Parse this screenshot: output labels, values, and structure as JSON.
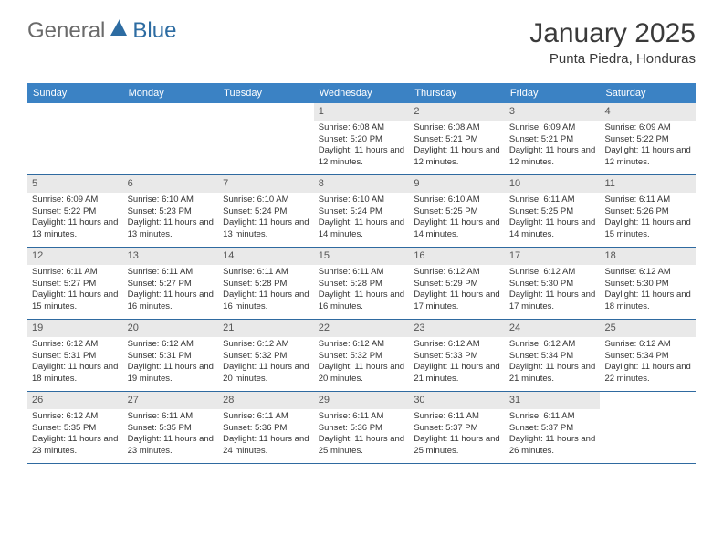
{
  "logo": {
    "text_general": "General",
    "text_blue": "Blue"
  },
  "title": "January 2025",
  "subtitle": "Punta Piedra, Honduras",
  "colors": {
    "header_bg": "#3b82c4",
    "header_text": "#ffffff",
    "daynum_bg": "#e9e9e9",
    "daynum_text": "#555555",
    "body_text": "#333333",
    "rule": "#2f6aa0",
    "logo_blue": "#2d6ca2",
    "logo_gray": "#6a6a6a",
    "page_bg": "#ffffff"
  },
  "typography": {
    "title_fontsize": 30,
    "subtitle_fontsize": 15,
    "dow_fontsize": 11,
    "daynum_fontsize": 11,
    "body_fontsize": 9.5,
    "font_family": "Arial"
  },
  "dow": [
    "Sunday",
    "Monday",
    "Tuesday",
    "Wednesday",
    "Thursday",
    "Friday",
    "Saturday"
  ],
  "weeks": [
    [
      {
        "n": "",
        "sunrise": "",
        "sunset": "",
        "daylight": ""
      },
      {
        "n": "",
        "sunrise": "",
        "sunset": "",
        "daylight": ""
      },
      {
        "n": "",
        "sunrise": "",
        "sunset": "",
        "daylight": ""
      },
      {
        "n": "1",
        "sunrise": "Sunrise: 6:08 AM",
        "sunset": "Sunset: 5:20 PM",
        "daylight": "Daylight: 11 hours and 12 minutes."
      },
      {
        "n": "2",
        "sunrise": "Sunrise: 6:08 AM",
        "sunset": "Sunset: 5:21 PM",
        "daylight": "Daylight: 11 hours and 12 minutes."
      },
      {
        "n": "3",
        "sunrise": "Sunrise: 6:09 AM",
        "sunset": "Sunset: 5:21 PM",
        "daylight": "Daylight: 11 hours and 12 minutes."
      },
      {
        "n": "4",
        "sunrise": "Sunrise: 6:09 AM",
        "sunset": "Sunset: 5:22 PM",
        "daylight": "Daylight: 11 hours and 12 minutes."
      }
    ],
    [
      {
        "n": "5",
        "sunrise": "Sunrise: 6:09 AM",
        "sunset": "Sunset: 5:22 PM",
        "daylight": "Daylight: 11 hours and 13 minutes."
      },
      {
        "n": "6",
        "sunrise": "Sunrise: 6:10 AM",
        "sunset": "Sunset: 5:23 PM",
        "daylight": "Daylight: 11 hours and 13 minutes."
      },
      {
        "n": "7",
        "sunrise": "Sunrise: 6:10 AM",
        "sunset": "Sunset: 5:24 PM",
        "daylight": "Daylight: 11 hours and 13 minutes."
      },
      {
        "n": "8",
        "sunrise": "Sunrise: 6:10 AM",
        "sunset": "Sunset: 5:24 PM",
        "daylight": "Daylight: 11 hours and 14 minutes."
      },
      {
        "n": "9",
        "sunrise": "Sunrise: 6:10 AM",
        "sunset": "Sunset: 5:25 PM",
        "daylight": "Daylight: 11 hours and 14 minutes."
      },
      {
        "n": "10",
        "sunrise": "Sunrise: 6:11 AM",
        "sunset": "Sunset: 5:25 PM",
        "daylight": "Daylight: 11 hours and 14 minutes."
      },
      {
        "n": "11",
        "sunrise": "Sunrise: 6:11 AM",
        "sunset": "Sunset: 5:26 PM",
        "daylight": "Daylight: 11 hours and 15 minutes."
      }
    ],
    [
      {
        "n": "12",
        "sunrise": "Sunrise: 6:11 AM",
        "sunset": "Sunset: 5:27 PM",
        "daylight": "Daylight: 11 hours and 15 minutes."
      },
      {
        "n": "13",
        "sunrise": "Sunrise: 6:11 AM",
        "sunset": "Sunset: 5:27 PM",
        "daylight": "Daylight: 11 hours and 16 minutes."
      },
      {
        "n": "14",
        "sunrise": "Sunrise: 6:11 AM",
        "sunset": "Sunset: 5:28 PM",
        "daylight": "Daylight: 11 hours and 16 minutes."
      },
      {
        "n": "15",
        "sunrise": "Sunrise: 6:11 AM",
        "sunset": "Sunset: 5:28 PM",
        "daylight": "Daylight: 11 hours and 16 minutes."
      },
      {
        "n": "16",
        "sunrise": "Sunrise: 6:12 AM",
        "sunset": "Sunset: 5:29 PM",
        "daylight": "Daylight: 11 hours and 17 minutes."
      },
      {
        "n": "17",
        "sunrise": "Sunrise: 6:12 AM",
        "sunset": "Sunset: 5:30 PM",
        "daylight": "Daylight: 11 hours and 17 minutes."
      },
      {
        "n": "18",
        "sunrise": "Sunrise: 6:12 AM",
        "sunset": "Sunset: 5:30 PM",
        "daylight": "Daylight: 11 hours and 18 minutes."
      }
    ],
    [
      {
        "n": "19",
        "sunrise": "Sunrise: 6:12 AM",
        "sunset": "Sunset: 5:31 PM",
        "daylight": "Daylight: 11 hours and 18 minutes."
      },
      {
        "n": "20",
        "sunrise": "Sunrise: 6:12 AM",
        "sunset": "Sunset: 5:31 PM",
        "daylight": "Daylight: 11 hours and 19 minutes."
      },
      {
        "n": "21",
        "sunrise": "Sunrise: 6:12 AM",
        "sunset": "Sunset: 5:32 PM",
        "daylight": "Daylight: 11 hours and 20 minutes."
      },
      {
        "n": "22",
        "sunrise": "Sunrise: 6:12 AM",
        "sunset": "Sunset: 5:32 PM",
        "daylight": "Daylight: 11 hours and 20 minutes."
      },
      {
        "n": "23",
        "sunrise": "Sunrise: 6:12 AM",
        "sunset": "Sunset: 5:33 PM",
        "daylight": "Daylight: 11 hours and 21 minutes."
      },
      {
        "n": "24",
        "sunrise": "Sunrise: 6:12 AM",
        "sunset": "Sunset: 5:34 PM",
        "daylight": "Daylight: 11 hours and 21 minutes."
      },
      {
        "n": "25",
        "sunrise": "Sunrise: 6:12 AM",
        "sunset": "Sunset: 5:34 PM",
        "daylight": "Daylight: 11 hours and 22 minutes."
      }
    ],
    [
      {
        "n": "26",
        "sunrise": "Sunrise: 6:12 AM",
        "sunset": "Sunset: 5:35 PM",
        "daylight": "Daylight: 11 hours and 23 minutes."
      },
      {
        "n": "27",
        "sunrise": "Sunrise: 6:11 AM",
        "sunset": "Sunset: 5:35 PM",
        "daylight": "Daylight: 11 hours and 23 minutes."
      },
      {
        "n": "28",
        "sunrise": "Sunrise: 6:11 AM",
        "sunset": "Sunset: 5:36 PM",
        "daylight": "Daylight: 11 hours and 24 minutes."
      },
      {
        "n": "29",
        "sunrise": "Sunrise: 6:11 AM",
        "sunset": "Sunset: 5:36 PM",
        "daylight": "Daylight: 11 hours and 25 minutes."
      },
      {
        "n": "30",
        "sunrise": "Sunrise: 6:11 AM",
        "sunset": "Sunset: 5:37 PM",
        "daylight": "Daylight: 11 hours and 25 minutes."
      },
      {
        "n": "31",
        "sunrise": "Sunrise: 6:11 AM",
        "sunset": "Sunset: 5:37 PM",
        "daylight": "Daylight: 11 hours and 26 minutes."
      },
      {
        "n": "",
        "sunrise": "",
        "sunset": "",
        "daylight": ""
      }
    ]
  ]
}
